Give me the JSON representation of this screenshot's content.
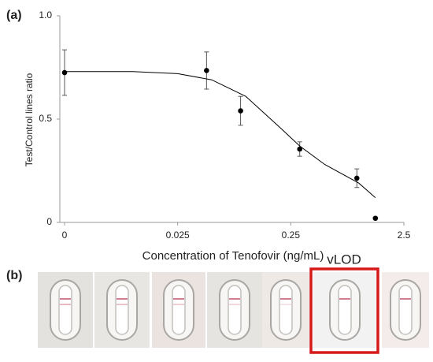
{
  "chart_data": {
    "type": "scatter",
    "panel_labels": [
      "(a)",
      "(b)"
    ],
    "x_label": "Concentration of Tenofovir (ng/mL)",
    "y_label": "Test/Control lines ratio",
    "annotation": "vLOD",
    "log_x": true,
    "xlim": [
      0.00227,
      2.5
    ],
    "xticks": [
      {
        "value": 0.0025,
        "label": "0"
      },
      0.025,
      0.25,
      2.5
    ],
    "ylim": [
      0,
      1
    ],
    "yticks": [
      0,
      0.5,
      {
        "value": 1,
        "label": "1.0"
      }
    ],
    "series": [
      {
        "color": "#000000",
        "x": [
          0.0025,
          0.045,
          0.09,
          0.3,
          0.96,
          1.4
        ],
        "values": [
          0.725,
          0.735,
          0.54,
          0.355,
          0.214,
          0.02
        ],
        "errors": [
          0.11,
          0.09,
          0.07,
          0.035,
          0.045,
          null
        ]
      },
      {
        "color": "#000000",
        "style": "line",
        "x": [
          0.0025,
          0.01,
          0.025,
          0.05,
          0.1,
          0.2,
          0.3,
          0.5,
          1,
          1.4
        ],
        "values": [
          0.73,
          0.73,
          0.72,
          0.69,
          0.61,
          0.46,
          0.37,
          0.28,
          0.19,
          0.12
        ]
      }
    ]
  }
}
